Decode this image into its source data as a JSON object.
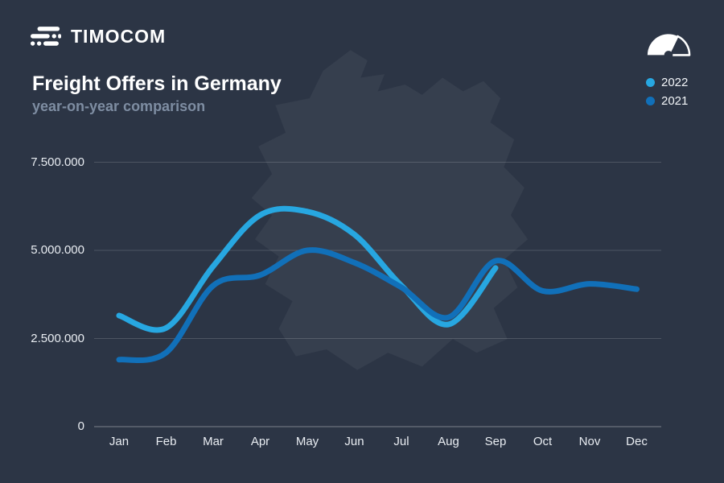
{
  "header": {
    "logo_text": "TIMOCOM"
  },
  "title": "Freight Offers in Germany",
  "subtitle": "year-on-year comparison",
  "legend": [
    {
      "label": "2022",
      "color": "#27A7E1"
    },
    {
      "label": "2021",
      "color": "#1170B9"
    }
  ],
  "colors": {
    "background": "#2C3545",
    "map_silhouette": "rgba(255,255,255,0.05)",
    "grid_line": "rgba(255,255,255,0.16)",
    "axis_line": "rgba(255,255,255,0.38)",
    "series_2022": "#27A7E1",
    "series_2021": "#1170B9",
    "text_primary": "#FFFFFF",
    "text_secondary": "#7E8DA2"
  },
  "icons": {
    "logo": "road-lines-icon",
    "gauge": "speedometer-icon"
  },
  "chart_data": {
    "type": "line",
    "title": "Freight Offers in Germany",
    "subtitle": "year-on-year comparison",
    "x": [
      "Jan",
      "Feb",
      "Mar",
      "Apr",
      "May",
      "Jun",
      "Jul",
      "Aug",
      "Sep",
      "Oct",
      "Nov",
      "Dec"
    ],
    "series": [
      {
        "name": "2022",
        "color": "#27A7E1",
        "values": [
          3150000,
          2800000,
          4550000,
          6000000,
          6100000,
          5450000,
          4000000,
          2900000,
          4500000,
          null,
          null,
          null
        ]
      },
      {
        "name": "2021",
        "color": "#1170B9",
        "values": [
          1900000,
          2100000,
          4000000,
          4300000,
          5000000,
          4650000,
          3950000,
          3100000,
          4700000,
          3850000,
          4050000,
          3900000
        ]
      }
    ],
    "yticks": [
      {
        "label": "0",
        "value": 0
      },
      {
        "label": "2.500.000",
        "value": 2500000
      },
      {
        "label": "5.000.000",
        "value": 5000000
      },
      {
        "label": "7.500.000",
        "value": 7500000
      }
    ],
    "ylim": [
      0,
      7500000
    ],
    "grid": true,
    "legend_position": "top-right"
  }
}
